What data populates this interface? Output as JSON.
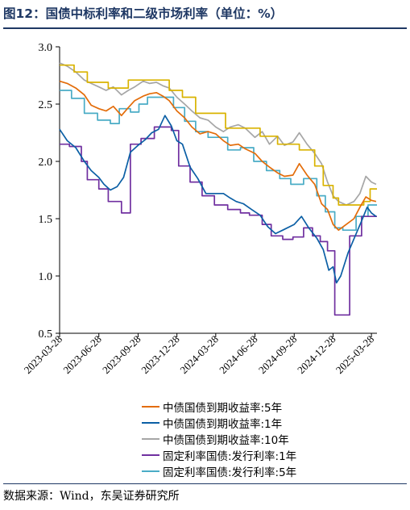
{
  "title": "图12：国债中标利率和二级市场利率（单位：%）",
  "source": "数据来源：Wind，东吴证券研究所",
  "colors": {
    "yield5y": "#e36c09",
    "yield1y": "#0b5fa5",
    "yield10y": "#a6a6a6",
    "auction1y": "#7030a0",
    "auction5y": "#4aacc6",
    "auction10y": "#d9b300",
    "heading": "#1f3864"
  },
  "chart_data": {
    "type": "line",
    "xlabel": "",
    "ylabel": "",
    "ylim": [
      0.5,
      3.0
    ],
    "yticks": [
      0.5,
      1.0,
      1.5,
      2.0,
      2.5,
      3.0
    ],
    "xlim": [
      "2023-03-28",
      "2025-04-10"
    ],
    "xticks": [
      "2023-03-28",
      "2023-06-28",
      "2023-09-28",
      "2023-12-28",
      "2024-03-28",
      "2024-06-28",
      "2024-09-28",
      "2024-12-28",
      "2025-03-28"
    ],
    "legend_position": "bottom",
    "series": [
      {
        "name": "中债国债到期收益率:5年",
        "color_key": "yield5y",
        "kind": "line",
        "points": [
          [
            "2023-03-28",
            2.7
          ],
          [
            "2023-04-15",
            2.68
          ],
          [
            "2023-05-05",
            2.64
          ],
          [
            "2023-05-25",
            2.58
          ],
          [
            "2023-06-10",
            2.49
          ],
          [
            "2023-06-28",
            2.46
          ],
          [
            "2023-07-15",
            2.44
          ],
          [
            "2023-08-01",
            2.48
          ],
          [
            "2023-08-20",
            2.4
          ],
          [
            "2023-09-05",
            2.47
          ],
          [
            "2023-09-20",
            2.53
          ],
          [
            "2023-10-10",
            2.57
          ],
          [
            "2023-10-25",
            2.59
          ],
          [
            "2023-11-10",
            2.6
          ],
          [
            "2023-11-25",
            2.57
          ],
          [
            "2023-12-10",
            2.53
          ],
          [
            "2023-12-28",
            2.44
          ],
          [
            "2024-01-15",
            2.38
          ],
          [
            "2024-02-01",
            2.3
          ],
          [
            "2024-02-20",
            2.24
          ],
          [
            "2024-03-10",
            2.26
          ],
          [
            "2024-03-28",
            2.24
          ],
          [
            "2024-04-15",
            2.18
          ],
          [
            "2024-05-01",
            2.14
          ],
          [
            "2024-05-20",
            2.15
          ],
          [
            "2024-06-05",
            2.11
          ],
          [
            "2024-06-28",
            2.07
          ],
          [
            "2024-07-15",
            2.0
          ],
          [
            "2024-08-01",
            1.95
          ],
          [
            "2024-08-20",
            1.9
          ],
          [
            "2024-09-05",
            1.87
          ],
          [
            "2024-09-25",
            1.88
          ],
          [
            "2024-10-10",
            1.98
          ],
          [
            "2024-10-28",
            1.88
          ],
          [
            "2024-11-15",
            1.8
          ],
          [
            "2024-12-01",
            1.63
          ],
          [
            "2024-12-15",
            1.58
          ],
          [
            "2024-12-28",
            1.45
          ],
          [
            "2025-01-10",
            1.4
          ],
          [
            "2025-01-28",
            1.45
          ],
          [
            "2025-02-15",
            1.5
          ],
          [
            "2025-03-01",
            1.6
          ],
          [
            "2025-03-15",
            1.69
          ],
          [
            "2025-03-28",
            1.66
          ],
          [
            "2025-04-08",
            1.65
          ]
        ]
      },
      {
        "name": "中债国债到期收益率:1年",
        "color_key": "yield1y",
        "kind": "line",
        "points": [
          [
            "2023-03-28",
            2.28
          ],
          [
            "2023-04-15",
            2.18
          ],
          [
            "2023-05-05",
            2.12
          ],
          [
            "2023-05-25",
            2.0
          ],
          [
            "2023-06-10",
            1.92
          ],
          [
            "2023-06-28",
            1.86
          ],
          [
            "2023-07-10",
            1.8
          ],
          [
            "2023-07-25",
            1.75
          ],
          [
            "2023-08-10",
            1.78
          ],
          [
            "2023-08-25",
            1.86
          ],
          [
            "2023-09-10",
            2.08
          ],
          [
            "2023-09-28",
            2.14
          ],
          [
            "2023-10-15",
            2.19
          ],
          [
            "2023-10-30",
            2.25
          ],
          [
            "2023-11-15",
            2.28
          ],
          [
            "2023-11-30",
            2.4
          ],
          [
            "2023-12-15",
            2.31
          ],
          [
            "2023-12-28",
            2.18
          ],
          [
            "2024-01-10",
            2.15
          ],
          [
            "2024-01-28",
            1.95
          ],
          [
            "2024-02-15",
            1.85
          ],
          [
            "2024-03-05",
            1.72
          ],
          [
            "2024-03-28",
            1.72
          ],
          [
            "2024-04-15",
            1.72
          ],
          [
            "2024-05-01",
            1.68
          ],
          [
            "2024-05-15",
            1.65
          ],
          [
            "2024-06-01",
            1.63
          ],
          [
            "2024-06-20",
            1.58
          ],
          [
            "2024-07-10",
            1.53
          ],
          [
            "2024-07-28",
            1.43
          ],
          [
            "2024-08-15",
            1.37
          ],
          [
            "2024-09-01",
            1.4
          ],
          [
            "2024-09-28",
            1.45
          ],
          [
            "2024-10-15",
            1.52
          ],
          [
            "2024-11-01",
            1.42
          ],
          [
            "2024-11-20",
            1.33
          ],
          [
            "2024-12-05",
            1.23
          ],
          [
            "2024-12-18",
            1.05
          ],
          [
            "2024-12-28",
            1.08
          ],
          [
            "2025-01-05",
            0.94
          ],
          [
            "2025-01-15",
            1.0
          ],
          [
            "2025-02-01",
            1.2
          ],
          [
            "2025-02-18",
            1.35
          ],
          [
            "2025-03-05",
            1.48
          ],
          [
            "2025-03-18",
            1.6
          ],
          [
            "2025-03-28",
            1.55
          ],
          [
            "2025-04-08",
            1.52
          ]
        ]
      },
      {
        "name": "中债国债到期收益率:10年",
        "color_key": "yield10y",
        "kind": "line",
        "points": [
          [
            "2023-03-28",
            2.86
          ],
          [
            "2023-04-15",
            2.83
          ],
          [
            "2023-05-05",
            2.78
          ],
          [
            "2023-05-25",
            2.71
          ],
          [
            "2023-06-10",
            2.68
          ],
          [
            "2023-06-28",
            2.65
          ],
          [
            "2023-07-15",
            2.62
          ],
          [
            "2023-08-01",
            2.65
          ],
          [
            "2023-08-20",
            2.58
          ],
          [
            "2023-09-05",
            2.62
          ],
          [
            "2023-09-20",
            2.65
          ],
          [
            "2023-10-10",
            2.7
          ],
          [
            "2023-10-25",
            2.68
          ],
          [
            "2023-11-10",
            2.69
          ],
          [
            "2023-11-25",
            2.66
          ],
          [
            "2023-12-10",
            2.64
          ],
          [
            "2023-12-28",
            2.56
          ],
          [
            "2024-01-15",
            2.5
          ],
          [
            "2024-02-01",
            2.44
          ],
          [
            "2024-02-20",
            2.38
          ],
          [
            "2024-03-10",
            2.36
          ],
          [
            "2024-03-28",
            2.3
          ],
          [
            "2024-04-15",
            2.26
          ],
          [
            "2024-05-01",
            2.3
          ],
          [
            "2024-05-20",
            2.32
          ],
          [
            "2024-06-05",
            2.29
          ],
          [
            "2024-06-28",
            2.21
          ],
          [
            "2024-07-15",
            2.26
          ],
          [
            "2024-08-01",
            2.15
          ],
          [
            "2024-08-20",
            2.22
          ],
          [
            "2024-09-05",
            2.14
          ],
          [
            "2024-09-25",
            2.17
          ],
          [
            "2024-10-10",
            2.25
          ],
          [
            "2024-10-28",
            2.15
          ],
          [
            "2024-11-15",
            2.07
          ],
          [
            "2024-12-01",
            1.98
          ],
          [
            "2024-12-15",
            1.82
          ],
          [
            "2024-12-28",
            1.7
          ],
          [
            "2025-01-10",
            1.65
          ],
          [
            "2025-01-28",
            1.62
          ],
          [
            "2025-02-15",
            1.65
          ],
          [
            "2025-03-01",
            1.72
          ],
          [
            "2025-03-15",
            1.87
          ],
          [
            "2025-03-28",
            1.82
          ],
          [
            "2025-04-08",
            1.8
          ]
        ]
      },
      {
        "name": "固定利率国债:发行利率:1年",
        "color_key": "auction1y",
        "kind": "step",
        "points": [
          [
            "2023-03-28",
            2.15
          ],
          [
            "2023-04-20",
            2.13
          ],
          [
            "2023-05-18",
            2.0
          ],
          [
            "2023-06-01",
            1.84
          ],
          [
            "2023-06-28",
            1.76
          ],
          [
            "2023-07-20",
            1.65
          ],
          [
            "2023-08-20",
            1.55
          ],
          [
            "2023-09-10",
            2.15
          ],
          [
            "2023-10-05",
            2.2
          ],
          [
            "2023-11-05",
            2.3
          ],
          [
            "2023-12-15",
            2.27
          ],
          [
            "2024-01-01",
            1.96
          ],
          [
            "2024-01-28",
            1.82
          ],
          [
            "2024-02-25",
            1.7
          ],
          [
            "2024-03-25",
            1.62
          ],
          [
            "2024-04-25",
            1.58
          ],
          [
            "2024-05-25",
            1.55
          ],
          [
            "2024-06-15",
            1.53
          ],
          [
            "2024-07-15",
            1.45
          ],
          [
            "2024-08-05",
            1.35
          ],
          [
            "2024-09-01",
            1.32
          ],
          [
            "2024-09-25",
            1.34
          ],
          [
            "2024-10-20",
            1.42
          ],
          [
            "2024-11-10",
            1.35
          ],
          [
            "2024-11-28",
            1.3
          ],
          [
            "2024-12-15",
            1.22
          ],
          [
            "2025-01-01",
            0.66
          ],
          [
            "2025-01-20",
            0.66
          ],
          [
            "2025-02-05",
            1.35
          ],
          [
            "2025-03-05",
            1.52
          ],
          [
            "2025-04-10",
            1.52
          ]
        ]
      },
      {
        "name": "固定利率国债:发行利率:5年",
        "color_key": "auction5y",
        "kind": "step",
        "points": [
          [
            "2023-03-28",
            2.62
          ],
          [
            "2023-04-25",
            2.55
          ],
          [
            "2023-05-25",
            2.42
          ],
          [
            "2023-06-25",
            2.36
          ],
          [
            "2023-07-25",
            2.33
          ],
          [
            "2023-08-15",
            2.46
          ],
          [
            "2023-09-10",
            2.43
          ],
          [
            "2023-09-30",
            2.5
          ],
          [
            "2023-10-20",
            2.56
          ],
          [
            "2023-12-20",
            2.47
          ],
          [
            "2024-01-15",
            2.35
          ],
          [
            "2024-02-10",
            2.26
          ],
          [
            "2024-03-10",
            2.21
          ],
          [
            "2024-04-25",
            2.1
          ],
          [
            "2024-05-25",
            2.12
          ],
          [
            "2024-06-25",
            2.0
          ],
          [
            "2024-07-25",
            1.92
          ],
          [
            "2024-08-25",
            1.85
          ],
          [
            "2024-09-20",
            1.8
          ],
          [
            "2024-10-20",
            1.85
          ],
          [
            "2024-11-20",
            1.7
          ],
          [
            "2024-12-10",
            1.56
          ],
          [
            "2025-01-01",
            1.42
          ],
          [
            "2025-01-20",
            1.4
          ],
          [
            "2025-02-20",
            1.52
          ],
          [
            "2025-03-20",
            1.62
          ],
          [
            "2025-04-10",
            1.62
          ]
        ]
      },
      {
        "name": "",
        "color_key": "auction10y",
        "kind": "step",
        "points": [
          [
            "2023-03-28",
            2.84
          ],
          [
            "2023-05-01",
            2.78
          ],
          [
            "2023-06-01",
            2.69
          ],
          [
            "2023-07-20",
            2.64
          ],
          [
            "2023-09-05",
            2.71
          ],
          [
            "2023-10-25",
            2.71
          ],
          [
            "2023-12-10",
            2.62
          ],
          [
            "2024-01-10",
            2.56
          ],
          [
            "2024-02-10",
            2.42
          ],
          [
            "2024-04-20",
            2.29
          ],
          [
            "2024-06-10",
            2.29
          ],
          [
            "2024-07-10",
            2.22
          ],
          [
            "2024-08-20",
            2.15
          ],
          [
            "2024-10-10",
            2.1
          ],
          [
            "2024-11-15",
            1.96
          ],
          [
            "2024-12-05",
            1.79
          ],
          [
            "2024-12-28",
            1.68
          ],
          [
            "2025-01-10",
            1.62
          ],
          [
            "2025-03-10",
            1.65
          ],
          [
            "2025-03-25",
            1.76
          ],
          [
            "2025-04-10",
            1.76
          ]
        ]
      }
    ]
  }
}
